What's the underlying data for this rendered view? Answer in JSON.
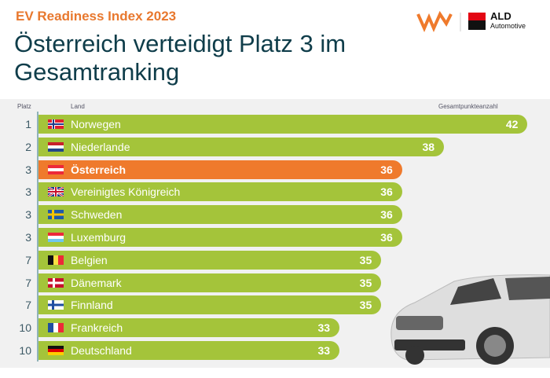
{
  "header": {
    "subtitle": "EV Readiness Index 2023",
    "title": "Österreich verteidigt Platz 3 im Gesamtranking",
    "logo_text": "ALD",
    "logo_subtext": "Automotive"
  },
  "chart_data": {
    "type": "bar",
    "orientation": "horizontal",
    "title": "Österreich verteidigt Platz 3 im Gesamtranking",
    "column_headers": {
      "rank": "Platz",
      "country": "Land",
      "value": "Gesamtpunkteanzahl"
    },
    "highlight_color": "#ef7a2c",
    "bar_color": "#a4c43a",
    "rows": [
      {
        "rank": "1",
        "country": "Norwegen",
        "value": 42,
        "flag": "no"
      },
      {
        "rank": "2",
        "country": "Niederlande",
        "value": 38,
        "flag": "nl"
      },
      {
        "rank": "3",
        "country": "Österreich",
        "value": 36,
        "flag": "at",
        "highlight": true
      },
      {
        "rank": "3",
        "country": "Vereinigtes Königreich",
        "value": 36,
        "flag": "gb"
      },
      {
        "rank": "3",
        "country": "Schweden",
        "value": 36,
        "flag": "se"
      },
      {
        "rank": "3",
        "country": "Luxemburg",
        "value": 36,
        "flag": "lu"
      },
      {
        "rank": "7",
        "country": "Belgien",
        "value": 35,
        "flag": "be"
      },
      {
        "rank": "7",
        "country": "Dänemark",
        "value": 35,
        "flag": "dk"
      },
      {
        "rank": "7",
        "country": "Finnland",
        "value": 35,
        "flag": "fi"
      },
      {
        "rank": "10",
        "country": "Frankreich",
        "value": 33,
        "flag": "fr"
      },
      {
        "rank": "10",
        "country": "Deutschland",
        "value": 33,
        "flag": "de"
      }
    ]
  }
}
